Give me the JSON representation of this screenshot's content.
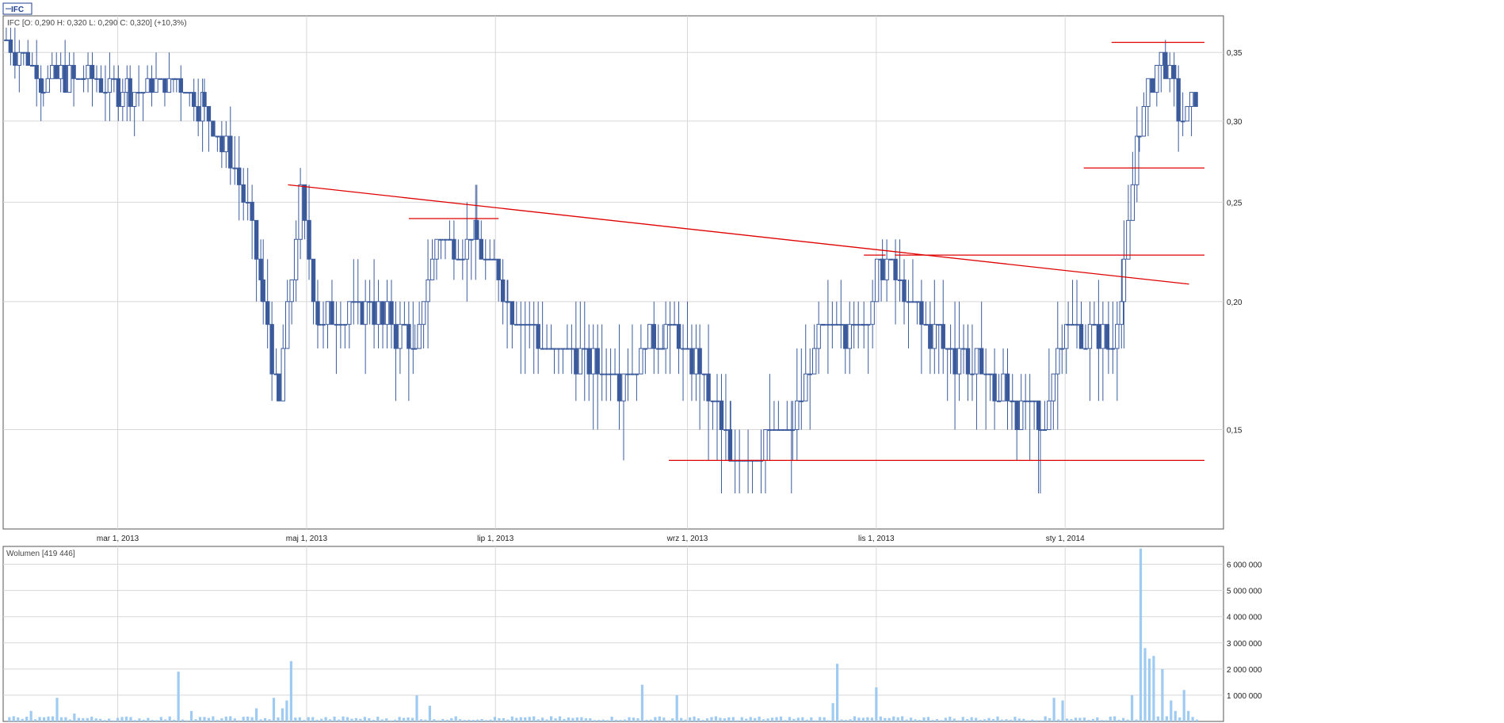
{
  "colors": {
    "candle": "#3a5a9c",
    "trend": "#e00000",
    "volume": "#9fcbf3",
    "grid": "#d8d8d8",
    "frame": "#555555"
  },
  "chart_data": [
    {
      "type": "candlestick",
      "legend_tag": "IFC",
      "info_text": "IFC [O: 0,290  H: 0,320  L: 0,290  C: 0,320] (+10,3%)",
      "x_range": [
        "2013-01-23",
        "2014-02-15"
      ],
      "x_ticks": [
        {
          "date": "2013-03-01",
          "label": "mar 1, 2013"
        },
        {
          "date": "2013-05-01",
          "label": "maj 1, 2013"
        },
        {
          "date": "2013-07-01",
          "label": "lip 1, 2013"
        },
        {
          "date": "2013-09-01",
          "label": "wrz 1, 2013"
        },
        {
          "date": "2013-11-01",
          "label": "lis 1, 2013"
        },
        {
          "date": "2014-01-01",
          "label": "sty 1, 2014"
        }
      ],
      "y_scale": "log",
      "ylim": [
        0.12,
        0.38
      ],
      "y_ticks": [
        {
          "value": 0.15,
          "label": "0,15"
        },
        {
          "value": 0.2,
          "label": "0,20"
        },
        {
          "value": 0.25,
          "label": "0,25"
        },
        {
          "value": 0.3,
          "label": "0,30"
        },
        {
          "value": 0.35,
          "label": "0,35"
        }
      ],
      "grid": true,
      "close_series": [
        [
          "2013-01-24",
          0.36
        ],
        [
          "2013-02-05",
          0.33
        ],
        [
          "2013-02-18",
          0.33
        ],
        [
          "2013-03-05",
          0.32
        ],
        [
          "2013-03-20",
          0.33
        ],
        [
          "2013-03-29",
          0.31
        ],
        [
          "2013-04-05",
          0.28
        ],
        [
          "2013-04-12",
          0.25
        ],
        [
          "2013-04-17",
          0.2
        ],
        [
          "2013-04-22",
          0.16
        ],
        [
          "2013-04-29",
          0.25
        ],
        [
          "2013-05-05",
          0.19
        ],
        [
          "2013-05-20",
          0.2
        ],
        [
          "2013-06-05",
          0.18
        ],
        [
          "2013-06-12",
          0.23
        ],
        [
          "2013-06-25",
          0.23
        ],
        [
          "2013-07-05",
          0.2
        ],
        [
          "2013-07-20",
          0.18
        ],
        [
          "2013-08-10",
          0.17
        ],
        [
          "2013-08-25",
          0.19
        ],
        [
          "2013-09-05",
          0.17
        ],
        [
          "2013-09-15",
          0.14
        ],
        [
          "2013-10-05",
          0.15
        ],
        [
          "2013-10-15",
          0.19
        ],
        [
          "2013-10-28",
          0.19
        ],
        [
          "2013-11-03",
          0.22
        ],
        [
          "2013-11-10",
          0.2
        ],
        [
          "2013-11-25",
          0.18
        ],
        [
          "2013-12-05",
          0.17
        ],
        [
          "2013-12-15",
          0.16
        ],
        [
          "2013-12-24",
          0.15
        ],
        [
          "2014-01-02",
          0.19
        ],
        [
          "2014-01-15",
          0.18
        ],
        [
          "2014-01-20",
          0.21
        ],
        [
          "2014-01-25",
          0.3
        ],
        [
          "2014-02-01",
          0.35
        ],
        [
          "2014-02-08",
          0.3
        ],
        [
          "2014-02-13",
          0.32
        ]
      ],
      "lines": [
        {
          "kind": "trendline",
          "from": [
            "2013-04-25",
            0.26
          ],
          "to": [
            "2014-02-10",
            0.208
          ]
        },
        {
          "kind": "horizontal",
          "value": 0.241,
          "from": "2013-06-03",
          "to": "2013-07-02"
        },
        {
          "kind": "horizontal",
          "value": 0.222,
          "from": "2013-10-28",
          "to": "2013-11-04"
        },
        {
          "kind": "horizontal",
          "value": 0.222,
          "from": "2013-11-07",
          "to": "2014-02-25"
        },
        {
          "kind": "horizontal",
          "value": 0.14,
          "from": "2013-08-26",
          "to": "2014-02-25"
        },
        {
          "kind": "horizontal",
          "value": 0.27,
          "from": "2014-01-07",
          "to": "2014-02-25"
        },
        {
          "kind": "horizontal",
          "value": 0.358,
          "from": "2014-01-16",
          "to": "2014-02-25"
        }
      ]
    },
    {
      "type": "bar",
      "title": "Wolumen [419 446]",
      "ylim": [
        0,
        6500000
      ],
      "y_ticks": [
        {
          "value": 1000000,
          "label": "1 000 000"
        },
        {
          "value": 2000000,
          "label": "2 000 000"
        },
        {
          "value": 3000000,
          "label": "3 000 000"
        },
        {
          "value": 4000000,
          "label": "4 000 000"
        },
        {
          "value": 5000000,
          "label": "5 000 000"
        },
        {
          "value": 6000000,
          "label": "6 000 000"
        }
      ],
      "baseline": 100000,
      "volume_spikes": [
        [
          "2013-01-27",
          200000
        ],
        [
          "2013-02-01",
          400000
        ],
        [
          "2013-02-10",
          900000
        ],
        [
          "2013-02-15",
          300000
        ],
        [
          "2013-03-20",
          1900000
        ],
        [
          "2013-03-25",
          400000
        ],
        [
          "2013-04-15",
          500000
        ],
        [
          "2013-04-20",
          900000
        ],
        [
          "2013-04-23",
          500000
        ],
        [
          "2013-04-25",
          800000
        ],
        [
          "2013-04-26",
          2300000
        ],
        [
          "2013-06-05",
          1000000
        ],
        [
          "2013-06-10",
          600000
        ],
        [
          "2013-08-18",
          1400000
        ],
        [
          "2013-08-28",
          1000000
        ],
        [
          "2013-10-18",
          700000
        ],
        [
          "2013-10-20",
          2200000
        ],
        [
          "2013-11-01",
          1300000
        ],
        [
          "2013-12-28",
          900000
        ],
        [
          "2013-12-31",
          800000
        ],
        [
          "2014-01-22",
          1000000
        ],
        [
          "2014-01-25",
          2800000
        ],
        [
          "2014-01-26",
          6600000
        ],
        [
          "2014-01-27",
          2800000
        ],
        [
          "2014-01-28",
          2400000
        ],
        [
          "2014-01-30",
          2500000
        ],
        [
          "2014-02-01",
          2000000
        ],
        [
          "2014-02-04",
          800000
        ],
        [
          "2014-02-06",
          400000
        ],
        [
          "2014-02-08",
          1200000
        ],
        [
          "2014-02-10",
          400000
        ]
      ],
      "grid": true
    }
  ]
}
